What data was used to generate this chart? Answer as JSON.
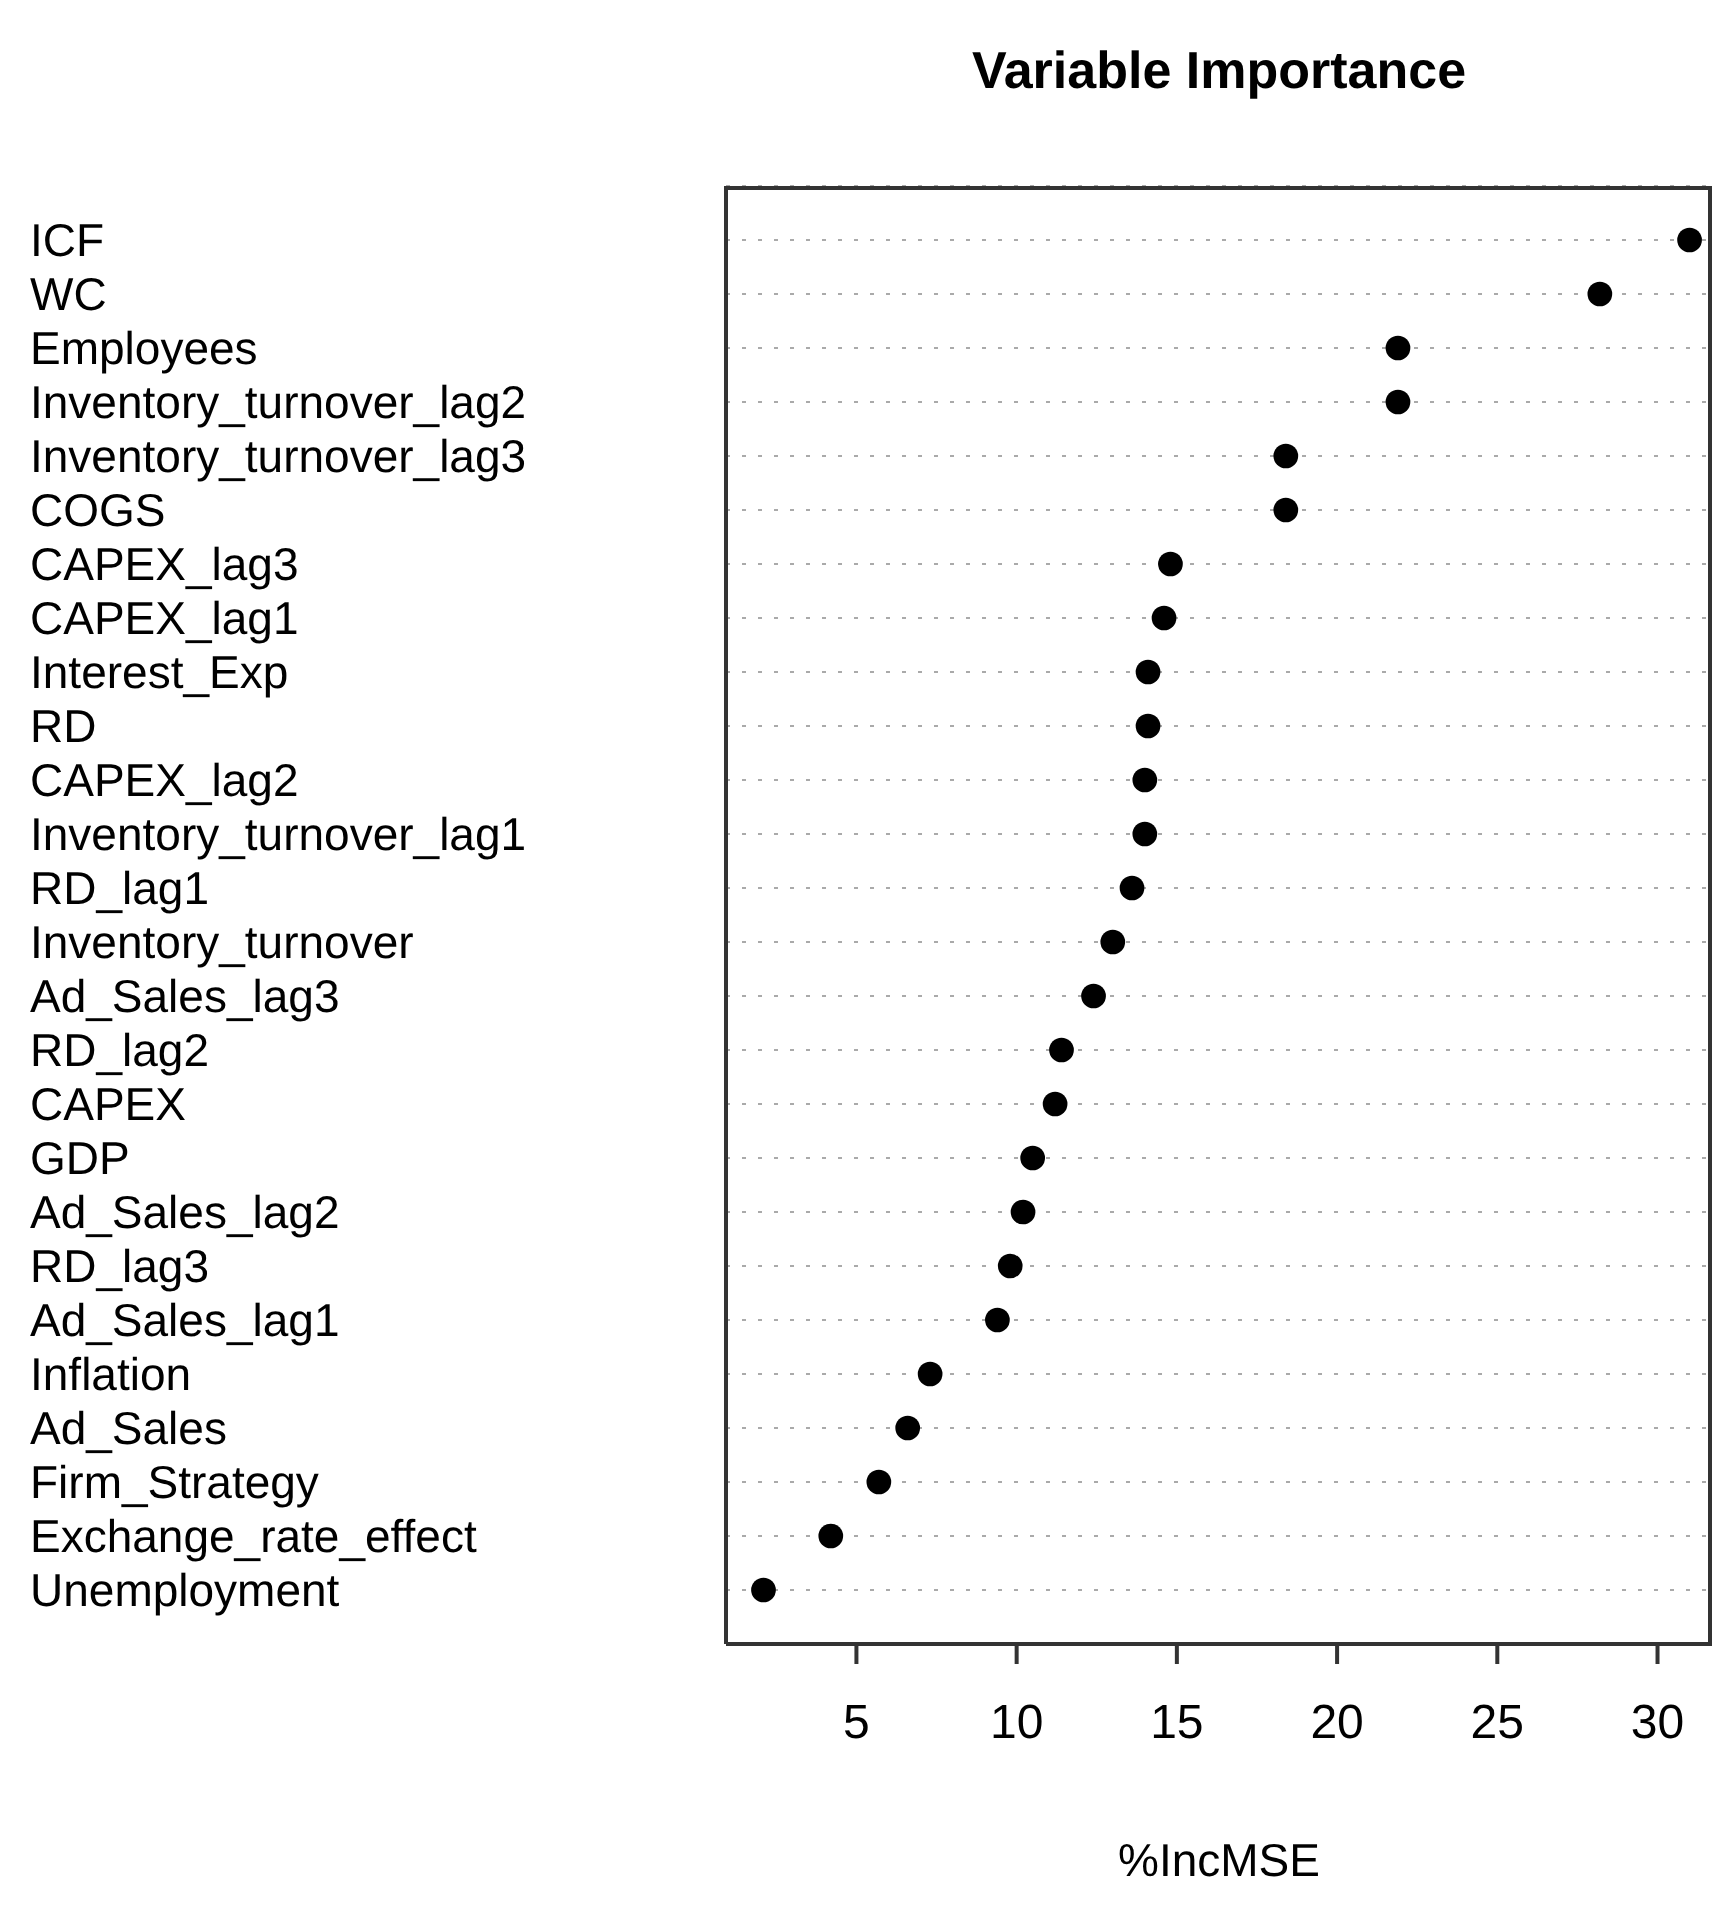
{
  "chart_data": {
    "type": "scatter",
    "title": "Variable Importance",
    "xlabel": "%IncMSE",
    "orientation": "horizontal",
    "categories": [
      "ICF",
      "WC",
      "Employees",
      "Inventory_turnover_lag2",
      "Inventory_turnover_lag3",
      "COGS",
      "CAPEX_lag3",
      "CAPEX_lag1",
      "Interest_Exp",
      "RD",
      "CAPEX_lag2",
      "Inventory_turnover_lag1",
      "RD_lag1",
      "Inventory_turnover",
      "Ad_Sales_lag3",
      "RD_lag2",
      "CAPEX",
      "GDP",
      "Ad_Sales_lag2",
      "RD_lag3",
      "Ad_Sales_lag1",
      "Inflation",
      "Ad_Sales",
      "Firm_Strategy",
      "Exchange_rate_effect",
      "Unemployment"
    ],
    "values": [
      31.0,
      28.2,
      21.9,
      21.9,
      18.4,
      18.4,
      14.8,
      14.6,
      14.1,
      14.1,
      14.0,
      14.0,
      13.6,
      13.0,
      12.4,
      11.4,
      11.2,
      10.5,
      10.2,
      9.8,
      9.4,
      7.3,
      6.6,
      5.7,
      4.2,
      2.1
    ],
    "color": "#000000",
    "marker": "circle",
    "xlim": [
      0.93,
      31.7
    ],
    "xticks": [
      5,
      10,
      15,
      20,
      25,
      30
    ],
    "grid": "y"
  }
}
